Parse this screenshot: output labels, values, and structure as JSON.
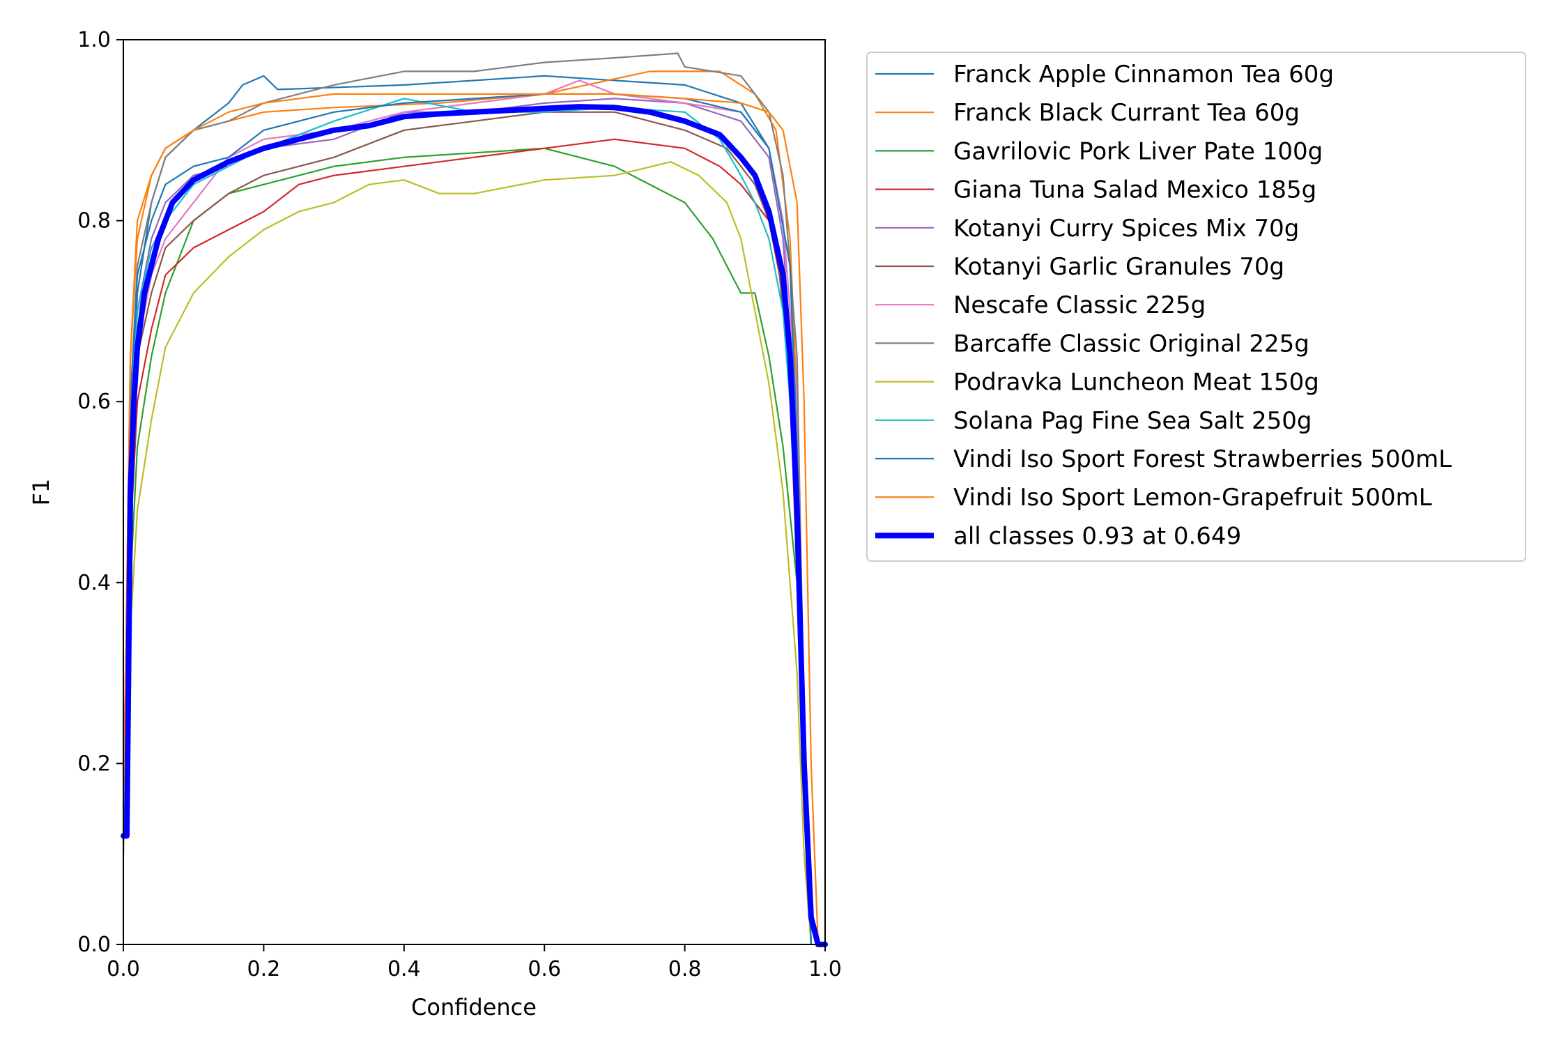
{
  "chart_data": {
    "type": "line",
    "title": "",
    "xlabel": "Confidence",
    "ylabel": "F1",
    "xlim": [
      0,
      1
    ],
    "ylim": [
      0,
      1
    ],
    "x_ticks": [
      "0.0",
      "0.2",
      "0.4",
      "0.6",
      "0.8",
      "1.0"
    ],
    "y_ticks": [
      "0.0",
      "0.2",
      "0.4",
      "0.6",
      "0.8",
      "1.0"
    ],
    "grid": false,
    "legend_position": "outside-right-top",
    "series": [
      {
        "name": "Franck Apple Cinnamon Tea 60g",
        "color": "#1f77b4",
        "points": [
          [
            0,
            0.12
          ],
          [
            0.01,
            0.55
          ],
          [
            0.02,
            0.72
          ],
          [
            0.04,
            0.82
          ],
          [
            0.06,
            0.87
          ],
          [
            0.1,
            0.9
          ],
          [
            0.15,
            0.93
          ],
          [
            0.17,
            0.95
          ],
          [
            0.2,
            0.96
          ],
          [
            0.22,
            0.945
          ],
          [
            0.4,
            0.95
          ],
          [
            0.6,
            0.96
          ],
          [
            0.8,
            0.95
          ],
          [
            0.88,
            0.93
          ],
          [
            0.92,
            0.88
          ],
          [
            0.95,
            0.75
          ],
          [
            0.96,
            0.55
          ],
          [
            0.97,
            0.2
          ],
          [
            0.98,
            0
          ]
        ]
      },
      {
        "name": "Franck Black Currant Tea 60g",
        "color": "#ff7f0e",
        "points": [
          [
            0,
            0.15
          ],
          [
            0.01,
            0.65
          ],
          [
            0.02,
            0.8
          ],
          [
            0.04,
            0.85
          ],
          [
            0.06,
            0.88
          ],
          [
            0.1,
            0.9
          ],
          [
            0.15,
            0.91
          ],
          [
            0.2,
            0.92
          ],
          [
            0.3,
            0.925
          ],
          [
            0.45,
            0.93
          ],
          [
            0.6,
            0.94
          ],
          [
            0.75,
            0.965
          ],
          [
            0.85,
            0.965
          ],
          [
            0.9,
            0.94
          ],
          [
            0.93,
            0.9
          ],
          [
            0.95,
            0.78
          ],
          [
            0.96,
            0.6
          ],
          [
            0.97,
            0.2
          ],
          [
            0.98,
            0
          ]
        ]
      },
      {
        "name": "Gavrilovic Pork Liver Pate 100g",
        "color": "#2ca02c",
        "points": [
          [
            0,
            0.1
          ],
          [
            0.01,
            0.4
          ],
          [
            0.02,
            0.55
          ],
          [
            0.04,
            0.65
          ],
          [
            0.06,
            0.72
          ],
          [
            0.1,
            0.8
          ],
          [
            0.15,
            0.83
          ],
          [
            0.2,
            0.84
          ],
          [
            0.25,
            0.85
          ],
          [
            0.3,
            0.86
          ],
          [
            0.4,
            0.87
          ],
          [
            0.5,
            0.875
          ],
          [
            0.6,
            0.88
          ],
          [
            0.7,
            0.86
          ],
          [
            0.8,
            0.82
          ],
          [
            0.84,
            0.78
          ],
          [
            0.86,
            0.75
          ],
          [
            0.88,
            0.72
          ],
          [
            0.9,
            0.72
          ],
          [
            0.92,
            0.65
          ],
          [
            0.94,
            0.55
          ],
          [
            0.96,
            0.4
          ],
          [
            0.97,
            0.15
          ],
          [
            0.98,
            0
          ]
        ]
      },
      {
        "name": "Giana Tuna Salad Mexico 185g",
        "color": "#d62728",
        "points": [
          [
            0,
            0.12
          ],
          [
            0.01,
            0.45
          ],
          [
            0.02,
            0.6
          ],
          [
            0.04,
            0.68
          ],
          [
            0.06,
            0.74
          ],
          [
            0.1,
            0.77
          ],
          [
            0.15,
            0.79
          ],
          [
            0.2,
            0.81
          ],
          [
            0.25,
            0.84
          ],
          [
            0.3,
            0.85
          ],
          [
            0.4,
            0.86
          ],
          [
            0.5,
            0.87
          ],
          [
            0.6,
            0.88
          ],
          [
            0.7,
            0.89
          ],
          [
            0.8,
            0.88
          ],
          [
            0.85,
            0.86
          ],
          [
            0.88,
            0.84
          ],
          [
            0.92,
            0.8
          ],
          [
            0.94,
            0.72
          ],
          [
            0.96,
            0.5
          ],
          [
            0.97,
            0.2
          ],
          [
            0.98,
            0
          ]
        ]
      },
      {
        "name": "Kotanyi Curry Spices Mix 70g",
        "color": "#9467bd",
        "points": [
          [
            0,
            0.13
          ],
          [
            0.01,
            0.55
          ],
          [
            0.02,
            0.7
          ],
          [
            0.04,
            0.78
          ],
          [
            0.06,
            0.82
          ],
          [
            0.1,
            0.85
          ],
          [
            0.15,
            0.86
          ],
          [
            0.2,
            0.88
          ],
          [
            0.3,
            0.89
          ],
          [
            0.4,
            0.92
          ],
          [
            0.5,
            0.92
          ],
          [
            0.6,
            0.93
          ],
          [
            0.7,
            0.935
          ],
          [
            0.8,
            0.93
          ],
          [
            0.88,
            0.91
          ],
          [
            0.92,
            0.87
          ],
          [
            0.94,
            0.78
          ],
          [
            0.96,
            0.55
          ],
          [
            0.97,
            0.2
          ],
          [
            0.98,
            0
          ]
        ]
      },
      {
        "name": "Kotanyi Garlic Granules 70g",
        "color": "#8c564b",
        "points": [
          [
            0,
            0.12
          ],
          [
            0.01,
            0.5
          ],
          [
            0.02,
            0.65
          ],
          [
            0.04,
            0.72
          ],
          [
            0.06,
            0.77
          ],
          [
            0.1,
            0.8
          ],
          [
            0.15,
            0.83
          ],
          [
            0.2,
            0.85
          ],
          [
            0.25,
            0.86
          ],
          [
            0.3,
            0.87
          ],
          [
            0.4,
            0.9
          ],
          [
            0.5,
            0.91
          ],
          [
            0.6,
            0.92
          ],
          [
            0.7,
            0.92
          ],
          [
            0.8,
            0.9
          ],
          [
            0.86,
            0.88
          ],
          [
            0.9,
            0.84
          ],
          [
            0.93,
            0.78
          ],
          [
            0.95,
            0.62
          ],
          [
            0.96,
            0.4
          ],
          [
            0.97,
            0.15
          ],
          [
            0.98,
            0
          ]
        ]
      },
      {
        "name": "Nescafe Classic 225g",
        "color": "#e377c2",
        "points": [
          [
            0,
            0.12
          ],
          [
            0.01,
            0.5
          ],
          [
            0.02,
            0.66
          ],
          [
            0.04,
            0.74
          ],
          [
            0.06,
            0.78
          ],
          [
            0.1,
            0.82
          ],
          [
            0.15,
            0.87
          ],
          [
            0.2,
            0.89
          ],
          [
            0.3,
            0.9
          ],
          [
            0.4,
            0.92
          ],
          [
            0.5,
            0.93
          ],
          [
            0.6,
            0.94
          ],
          [
            0.65,
            0.955
          ],
          [
            0.7,
            0.94
          ],
          [
            0.8,
            0.93
          ],
          [
            0.88,
            0.92
          ],
          [
            0.92,
            0.88
          ],
          [
            0.94,
            0.8
          ],
          [
            0.96,
            0.6
          ],
          [
            0.97,
            0.2
          ],
          [
            0.98,
            0
          ]
        ]
      },
      {
        "name": "Barcaffe Classic Original 225g",
        "color": "#7f7f7f",
        "points": [
          [
            0,
            0.12
          ],
          [
            0.01,
            0.6
          ],
          [
            0.02,
            0.75
          ],
          [
            0.04,
            0.82
          ],
          [
            0.06,
            0.87
          ],
          [
            0.1,
            0.9
          ],
          [
            0.15,
            0.91
          ],
          [
            0.2,
            0.93
          ],
          [
            0.3,
            0.95
          ],
          [
            0.4,
            0.965
          ],
          [
            0.5,
            0.965
          ],
          [
            0.6,
            0.975
          ],
          [
            0.7,
            0.98
          ],
          [
            0.79,
            0.985
          ],
          [
            0.8,
            0.97
          ],
          [
            0.88,
            0.96
          ],
          [
            0.92,
            0.92
          ],
          [
            0.94,
            0.85
          ],
          [
            0.96,
            0.65
          ],
          [
            0.97,
            0.25
          ],
          [
            0.98,
            0
          ]
        ]
      },
      {
        "name": "Podravka Luncheon Meat 150g",
        "color": "#bcbd22",
        "points": [
          [
            0,
            0.1
          ],
          [
            0.01,
            0.35
          ],
          [
            0.02,
            0.48
          ],
          [
            0.04,
            0.58
          ],
          [
            0.06,
            0.66
          ],
          [
            0.1,
            0.72
          ],
          [
            0.15,
            0.76
          ],
          [
            0.2,
            0.79
          ],
          [
            0.25,
            0.81
          ],
          [
            0.3,
            0.82
          ],
          [
            0.35,
            0.84
          ],
          [
            0.4,
            0.845
          ],
          [
            0.45,
            0.83
          ],
          [
            0.5,
            0.83
          ],
          [
            0.6,
            0.845
          ],
          [
            0.7,
            0.85
          ],
          [
            0.78,
            0.865
          ],
          [
            0.82,
            0.85
          ],
          [
            0.86,
            0.82
          ],
          [
            0.88,
            0.78
          ],
          [
            0.9,
            0.7
          ],
          [
            0.92,
            0.62
          ],
          [
            0.94,
            0.5
          ],
          [
            0.96,
            0.3
          ],
          [
            0.97,
            0.1
          ],
          [
            0.98,
            0
          ]
        ]
      },
      {
        "name": "Solana Pag Fine Sea Salt 250g",
        "color": "#17becf",
        "points": [
          [
            0,
            0.12
          ],
          [
            0.01,
            0.55
          ],
          [
            0.02,
            0.7
          ],
          [
            0.04,
            0.77
          ],
          [
            0.06,
            0.8
          ],
          [
            0.1,
            0.84
          ],
          [
            0.15,
            0.86
          ],
          [
            0.2,
            0.88
          ],
          [
            0.3,
            0.91
          ],
          [
            0.4,
            0.935
          ],
          [
            0.5,
            0.92
          ],
          [
            0.6,
            0.92
          ],
          [
            0.7,
            0.925
          ],
          [
            0.8,
            0.92
          ],
          [
            0.85,
            0.89
          ],
          [
            0.88,
            0.85
          ],
          [
            0.9,
            0.82
          ],
          [
            0.92,
            0.78
          ],
          [
            0.94,
            0.7
          ],
          [
            0.96,
            0.5
          ],
          [
            0.97,
            0.2
          ],
          [
            0.98,
            0
          ]
        ]
      },
      {
        "name": "Vindi Iso Sport Forest Strawberries 500mL",
        "color": "#1f77b4",
        "points": [
          [
            0,
            0.12
          ],
          [
            0.01,
            0.6
          ],
          [
            0.02,
            0.74
          ],
          [
            0.04,
            0.8
          ],
          [
            0.06,
            0.84
          ],
          [
            0.1,
            0.86
          ],
          [
            0.15,
            0.87
          ],
          [
            0.2,
            0.9
          ],
          [
            0.3,
            0.92
          ],
          [
            0.4,
            0.93
          ],
          [
            0.5,
            0.935
          ],
          [
            0.6,
            0.94
          ],
          [
            0.7,
            0.94
          ],
          [
            0.8,
            0.935
          ],
          [
            0.88,
            0.92
          ],
          [
            0.92,
            0.88
          ],
          [
            0.95,
            0.75
          ],
          [
            0.96,
            0.55
          ],
          [
            0.97,
            0.2
          ],
          [
            0.98,
            0
          ]
        ]
      },
      {
        "name": "Vindi Iso Sport Lemon-Grapefruit 500mL",
        "color": "#ff7f0e",
        "points": [
          [
            0,
            0.15
          ],
          [
            0.01,
            0.65
          ],
          [
            0.02,
            0.78
          ],
          [
            0.04,
            0.85
          ],
          [
            0.06,
            0.88
          ],
          [
            0.1,
            0.9
          ],
          [
            0.15,
            0.92
          ],
          [
            0.2,
            0.93
          ],
          [
            0.3,
            0.94
          ],
          [
            0.4,
            0.94
          ],
          [
            0.5,
            0.94
          ],
          [
            0.6,
            0.94
          ],
          [
            0.7,
            0.94
          ],
          [
            0.8,
            0.935
          ],
          [
            0.88,
            0.93
          ],
          [
            0.92,
            0.92
          ],
          [
            0.94,
            0.9
          ],
          [
            0.96,
            0.82
          ],
          [
            0.97,
            0.6
          ],
          [
            0.98,
            0.2
          ],
          [
            0.99,
            0
          ]
        ]
      },
      {
        "name": "all classes 0.93 at 0.649",
        "color": "#0000ff",
        "line_width": "bold",
        "points": [
          [
            0,
            0.12
          ],
          [
            0.005,
            0.12
          ],
          [
            0.01,
            0.5
          ],
          [
            0.015,
            0.6
          ],
          [
            0.02,
            0.66
          ],
          [
            0.03,
            0.72
          ],
          [
            0.05,
            0.78
          ],
          [
            0.07,
            0.82
          ],
          [
            0.1,
            0.845
          ],
          [
            0.15,
            0.865
          ],
          [
            0.2,
            0.88
          ],
          [
            0.25,
            0.89
          ],
          [
            0.3,
            0.9
          ],
          [
            0.35,
            0.905
          ],
          [
            0.4,
            0.915
          ],
          [
            0.45,
            0.918
          ],
          [
            0.5,
            0.92
          ],
          [
            0.55,
            0.922
          ],
          [
            0.6,
            0.924
          ],
          [
            0.649,
            0.926
          ],
          [
            0.7,
            0.925
          ],
          [
            0.75,
            0.92
          ],
          [
            0.8,
            0.91
          ],
          [
            0.85,
            0.895
          ],
          [
            0.88,
            0.87
          ],
          [
            0.9,
            0.85
          ],
          [
            0.92,
            0.81
          ],
          [
            0.94,
            0.74
          ],
          [
            0.95,
            0.65
          ],
          [
            0.96,
            0.48
          ],
          [
            0.97,
            0.2
          ],
          [
            0.98,
            0.03
          ],
          [
            0.99,
            0
          ],
          [
            1.0,
            0
          ]
        ]
      }
    ]
  }
}
